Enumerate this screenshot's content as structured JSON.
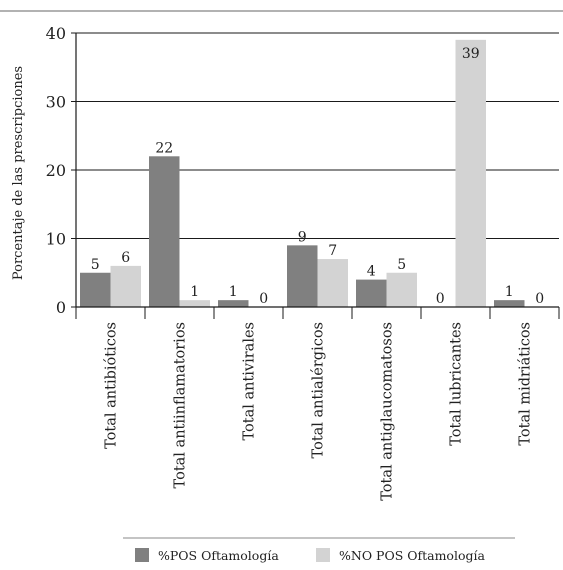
{
  "chart_data": {
    "type": "bar",
    "title": "",
    "xlabel": "",
    "ylabel": "Porcentaje de las prescripciones",
    "ylim": [
      0,
      40
    ],
    "yticks": [
      0,
      10,
      20,
      30,
      40
    ],
    "grid": "horizontal",
    "legend_position": "bottom",
    "categories": [
      "Total antibióticos",
      "Total antiinflamatorios",
      "Total antivirales",
      "Total antialérgicos",
      "Total antiglaucomatosos",
      "Total lubricantes",
      "Total midriáticos"
    ],
    "series": [
      {
        "name": "%POS Oftamología",
        "color": "#808080",
        "values": [
          5,
          22,
          1,
          9,
          4,
          0,
          1
        ]
      },
      {
        "name": "%NO POS Oftamología",
        "color": "#d3d3d3",
        "values": [
          6,
          1,
          0,
          7,
          5,
          39,
          0
        ]
      }
    ]
  }
}
